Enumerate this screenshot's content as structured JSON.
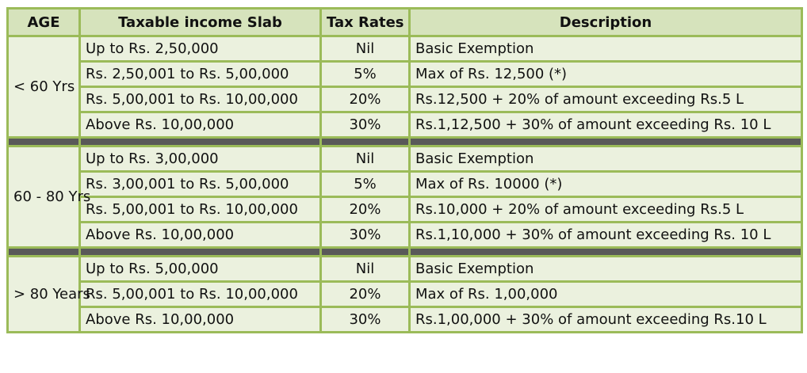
{
  "headers": {
    "age": "AGE",
    "slab": "Taxable income Slab",
    "rate": "Tax Rates",
    "desc": "Description"
  },
  "groups": [
    {
      "age": "< 60 Yrs",
      "rows": [
        {
          "slab": "Up to Rs. 2,50,000",
          "rate": "Nil",
          "desc": "Basic Exemption"
        },
        {
          "slab": "Rs. 2,50,001 to Rs. 5,00,000",
          "rate": "5%",
          "desc": "Max of Rs. 12,500 (*)"
        },
        {
          "slab": "Rs. 5,00,001 to Rs. 10,00,000",
          "rate": "20%",
          "desc": "Rs.12,500 + 20% of amount exceeding Rs.5 L"
        },
        {
          "slab": "Above Rs. 10,00,000",
          "rate": "30%",
          "desc": "Rs.1,12,500 + 30% of amount exceeding Rs. 10 L"
        }
      ]
    },
    {
      "age": "60 - 80 Yrs",
      "rows": [
        {
          "slab": "Up to Rs. 3,00,000",
          "rate": "Nil",
          "desc": "Basic Exemption"
        },
        {
          "slab": "Rs. 3,00,001 to Rs. 5,00,000",
          "rate": "5%",
          "desc": "Max of Rs. 10000 (*)"
        },
        {
          "slab": "Rs. 5,00,001 to Rs. 10,00,000",
          "rate": "20%",
          "desc": "Rs.10,000 + 20% of amount exceeding Rs.5 L"
        },
        {
          "slab": "Above Rs. 10,00,000",
          "rate": "30%",
          "desc": "Rs.1,10,000 + 30% of amount exceeding Rs. 10 L"
        }
      ]
    },
    {
      "age": "> 80 Years",
      "rows": [
        {
          "slab": "Up to Rs. 5,00,000",
          "rate": "Nil",
          "desc": "Basic Exemption"
        },
        {
          "slab": "Rs. 5,00,001 to Rs. 10,00,000",
          "rate": "20%",
          "desc": "Max of Rs. 1,00,000"
        },
        {
          "slab": "Above Rs. 10,00,000",
          "rate": "30%",
          "desc": "Rs.1,00,000 + 30% of amount exceeding Rs.10 L"
        }
      ]
    }
  ],
  "colors": {
    "header_bg": "#d6e3bc",
    "cell_bg": "#ebf1de",
    "border": "#9bbb59",
    "separator": "#595959"
  }
}
